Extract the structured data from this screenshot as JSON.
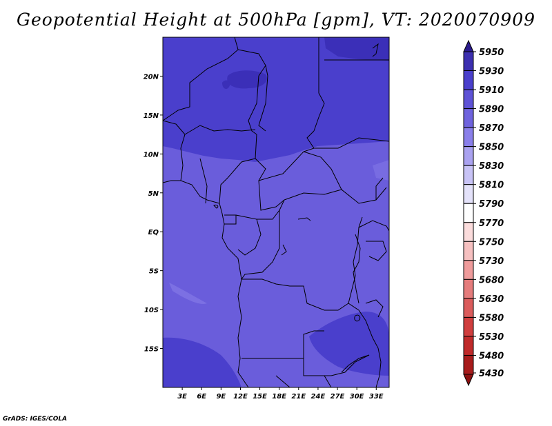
{
  "title": "Geopotential Height at 500hPa [gpm], VT: 2020070909",
  "credit": "GrADS: IGES/COLA",
  "map": {
    "lon_range": [
      0,
      35
    ],
    "lat_range": [
      -20,
      25
    ],
    "x_ticks": [
      "3E",
      "6E",
      "9E",
      "12E",
      "15E",
      "18E",
      "21E",
      "24E",
      "27E",
      "30E",
      "33E"
    ],
    "y_ticks": [
      "20N",
      "15N",
      "10N",
      "5N",
      "EQ",
      "5S",
      "10S",
      "15S"
    ],
    "field_colors": {
      "c5870": "#6a5ddb",
      "c5890": "#4a3fcc",
      "c5910": "#3b2fb8",
      "border": "#000000"
    }
  },
  "colorbar": {
    "labels": [
      "5950",
      "5930",
      "5910",
      "5890",
      "5870",
      "5850",
      "5830",
      "5810",
      "5790",
      "5770",
      "5750",
      "5730",
      "5680",
      "5630",
      "5580",
      "5530",
      "5480",
      "5430"
    ],
    "colors": [
      "#2a1a8c",
      "#3c2fb0",
      "#4a3fcc",
      "#5e52d6",
      "#6f63de",
      "#8a7fea",
      "#aaa2f0",
      "#c8c3f6",
      "#e4e2fa",
      "#ffffff",
      "#fbdcdc",
      "#f6c0c0",
      "#ef9b9b",
      "#e57c7c",
      "#db5c5c",
      "#d03e3e",
      "#c02a2a",
      "#a81c1c",
      "#8c1010"
    ]
  }
}
